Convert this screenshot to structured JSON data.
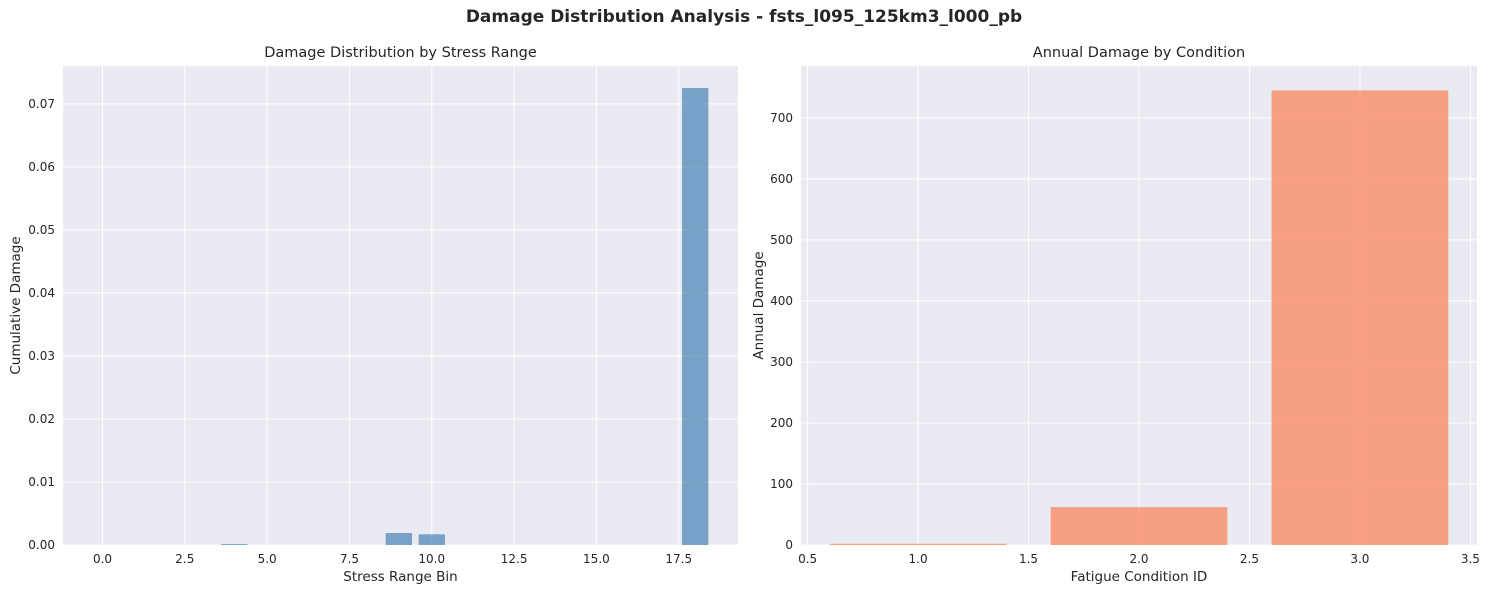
{
  "figure": {
    "suptitle": "Damage Distribution Analysis - fsts_l095_125km3_l000_pb"
  },
  "colors": {
    "plot_bg": "#eaeaf2",
    "grid": "#ffffff",
    "left_bar": "#4682b4",
    "right_bar": "#fa8c64"
  },
  "chart_data": [
    {
      "type": "bar",
      "title": "Damage Distribution by Stress Range",
      "xlabel": "Stress Range Bin",
      "ylabel": "Cumulative Damage",
      "xlim": [
        -1.2,
        19.3
      ],
      "ylim": [
        0,
        0.076
      ],
      "xticks": [
        0.0,
        2.5,
        5.0,
        7.5,
        10.0,
        12.5,
        15.0,
        17.5
      ],
      "xtick_labels": [
        "0.0",
        "2.5",
        "5.0",
        "7.5",
        "10.0",
        "12.5",
        "15.0",
        "17.5"
      ],
      "yticks": [
        0,
        0.01,
        0.02,
        0.03,
        0.04,
        0.05,
        0.06,
        0.07
      ],
      "ytick_labels": [
        "0.00",
        "0.01",
        "0.02",
        "0.03",
        "0.04",
        "0.05",
        "0.06",
        "0.07"
      ],
      "bar_width": 0.8,
      "grid": true,
      "x": [
        0,
        1,
        2,
        3,
        4,
        5,
        6,
        7,
        8,
        9,
        10,
        11,
        12,
        13,
        14,
        15,
        16,
        17,
        18
      ],
      "values": [
        0,
        0,
        0,
        0,
        0.00015,
        0,
        0,
        0,
        0,
        0.0019,
        0.0017,
        0,
        0,
        0,
        0,
        0,
        0,
        0,
        0.0725
      ]
    },
    {
      "type": "bar",
      "title": "Annual Damage by Condition",
      "xlabel": "Fatigue Condition ID",
      "ylabel": "Annual Damage",
      "xlim": [
        0.47,
        3.53
      ],
      "ylim": [
        0,
        785
      ],
      "xticks": [
        0.5,
        1.0,
        1.5,
        2.0,
        2.5,
        3.0,
        3.5
      ],
      "xtick_labels": [
        "0.5",
        "1.0",
        "1.5",
        "2.0",
        "2.5",
        "3.0",
        "3.5"
      ],
      "yticks": [
        0,
        100,
        200,
        300,
        400,
        500,
        600,
        700
      ],
      "ytick_labels": [
        "0",
        "100",
        "200",
        "300",
        "400",
        "500",
        "600",
        "700"
      ],
      "bar_width": 0.8,
      "grid": true,
      "x": [
        1,
        2,
        3
      ],
      "values": [
        2,
        62,
        745
      ]
    }
  ]
}
